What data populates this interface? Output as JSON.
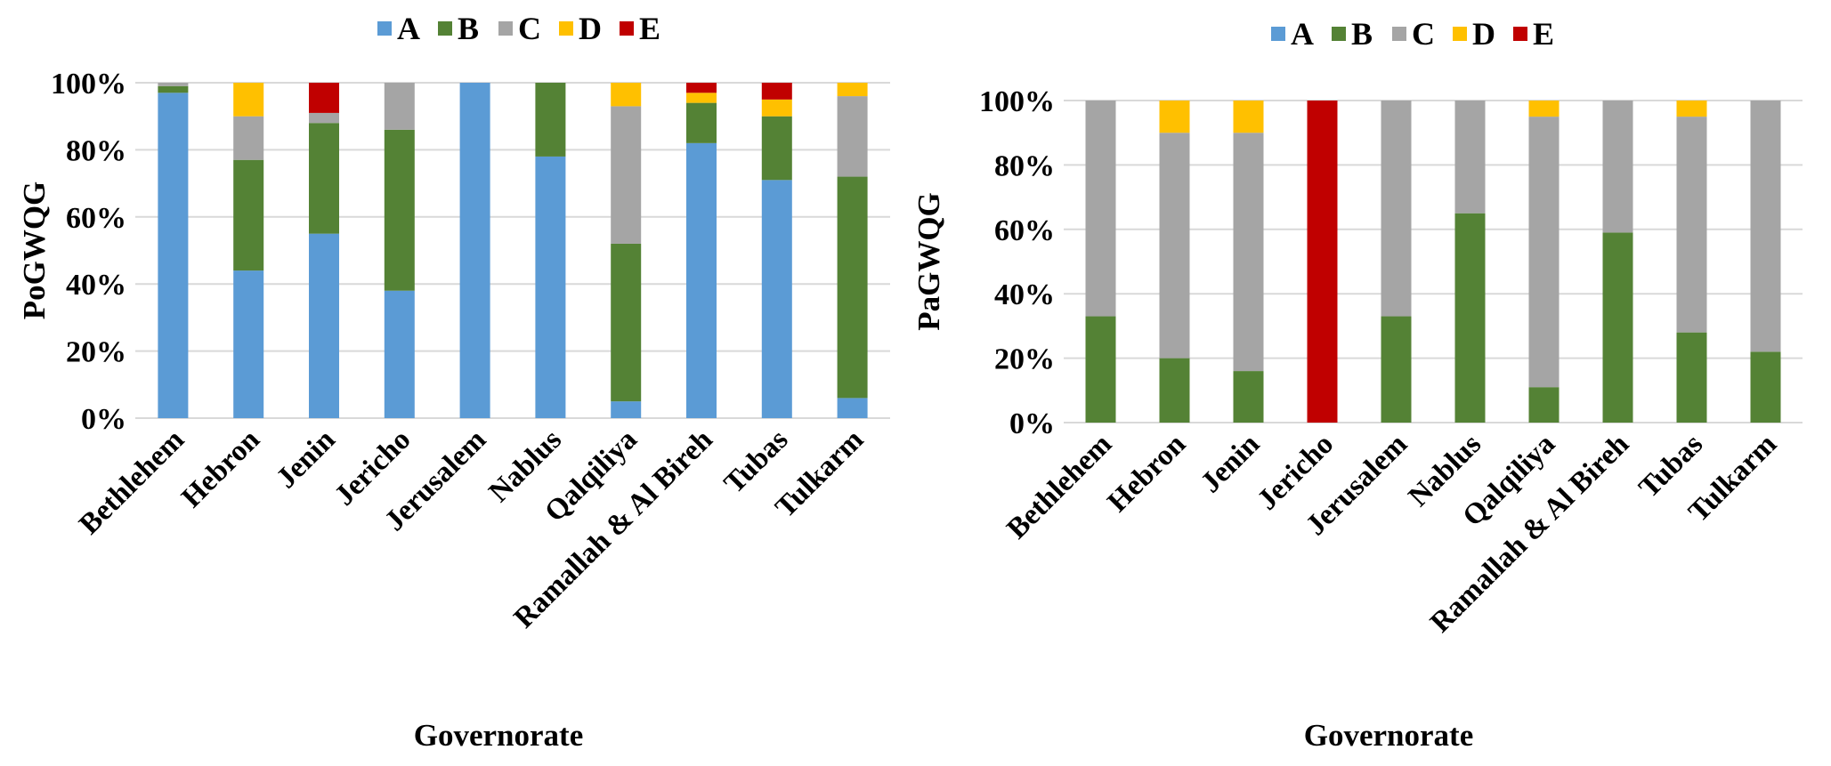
{
  "colors": {
    "A": "#5B9BD5",
    "B": "#548235",
    "C": "#A5A5A5",
    "D": "#FFC000",
    "E": "#C00000",
    "grid": "#D9D9D9"
  },
  "chart_data": [
    {
      "type": "bar",
      "stacked": true,
      "ylabel": "PoGWQG",
      "xlabel": "Governorate",
      "ylim": [
        0,
        100
      ],
      "yticks": [
        "0%",
        "20%",
        "40%",
        "60%",
        "80%",
        "100%"
      ],
      "legend": {
        "position": "top",
        "entries": [
          "A",
          "B",
          "C",
          "D",
          "E"
        ]
      },
      "categories": [
        "Bethlehem",
        "Hebron",
        "Jenin",
        "Jericho",
        "Jerusalem",
        "Nablus",
        "Qalqiliya",
        "Ramallah & Al Bireh",
        "Tubas",
        "Tulkarm"
      ],
      "series": [
        {
          "name": "A",
          "values": [
            97,
            44,
            55,
            38,
            100,
            78,
            5,
            82,
            71,
            6
          ]
        },
        {
          "name": "B",
          "values": [
            2,
            33,
            33,
            48,
            0,
            22,
            47,
            12,
            19,
            66
          ]
        },
        {
          "name": "C",
          "values": [
            1,
            13,
            3,
            14,
            0,
            0,
            41,
            0,
            0,
            24
          ]
        },
        {
          "name": "D",
          "values": [
            0,
            10,
            0,
            0,
            0,
            0,
            7,
            3,
            5,
            4
          ]
        },
        {
          "name": "E",
          "values": [
            0,
            0,
            9,
            0,
            0,
            0,
            0,
            3,
            5,
            0
          ]
        }
      ]
    },
    {
      "type": "bar",
      "stacked": true,
      "ylabel": "PaGWQG",
      "xlabel": "Governorate",
      "ylim": [
        0,
        100
      ],
      "yticks": [
        "0%",
        "20%",
        "40%",
        "60%",
        "80%",
        "100%"
      ],
      "legend": {
        "position": "top",
        "entries": [
          "A",
          "B",
          "C",
          "D",
          "E"
        ]
      },
      "categories": [
        "Bethlehem",
        "Hebron",
        "Jenin",
        "Jericho",
        "Jerusalem",
        "Nablus",
        "Qalqiliya",
        "Ramallah & Al Bireh",
        "Tubas",
        "Tulkarm"
      ],
      "series": [
        {
          "name": "A",
          "values": [
            0,
            0,
            0,
            0,
            0,
            0,
            0,
            0,
            0,
            0
          ]
        },
        {
          "name": "B",
          "values": [
            33,
            20,
            16,
            0,
            33,
            65,
            11,
            59,
            28,
            22
          ]
        },
        {
          "name": "C",
          "values": [
            67,
            70,
            74,
            0,
            67,
            35,
            84,
            41,
            67,
            78
          ]
        },
        {
          "name": "D",
          "values": [
            0,
            10,
            10,
            0,
            0,
            0,
            5,
            0,
            5,
            0
          ]
        },
        {
          "name": "E",
          "values": [
            0,
            0,
            0,
            100,
            0,
            0,
            0,
            0,
            0,
            0
          ]
        }
      ]
    }
  ]
}
